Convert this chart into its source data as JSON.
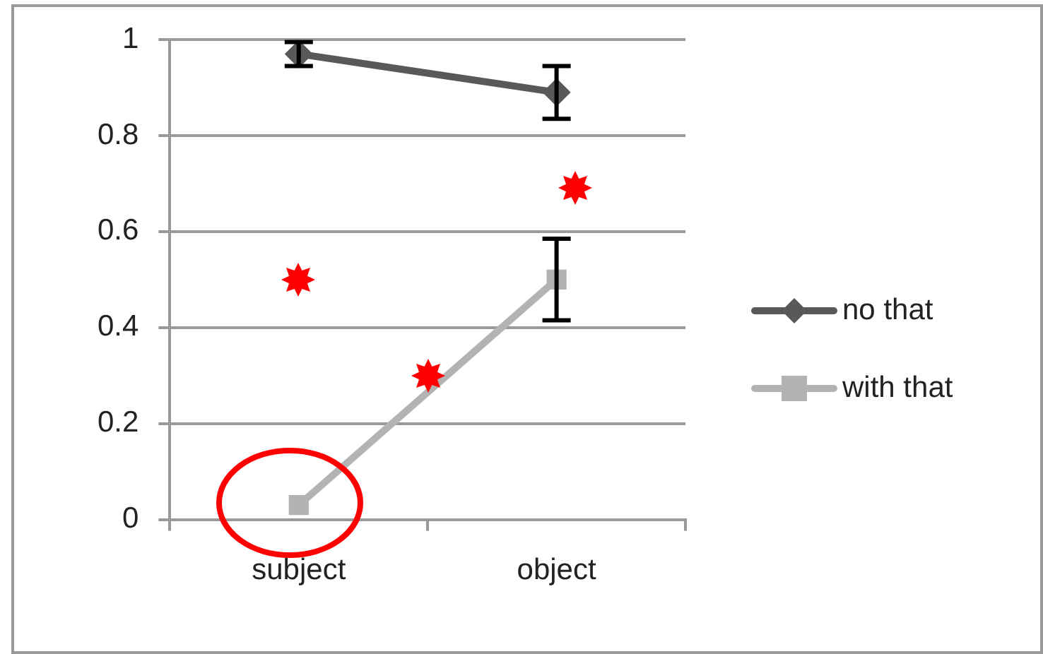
{
  "chart_data": {
    "type": "line",
    "categories": [
      "subject",
      "object"
    ],
    "series": [
      {
        "name": "no that",
        "color": "#595959",
        "values": [
          0.97,
          0.89
        ],
        "errors": [
          0.025,
          0.055
        ],
        "marker": "diamond"
      },
      {
        "name": "with that",
        "color": "#b3b3b3",
        "values": [
          0.03,
          0.5
        ],
        "errors": [
          null,
          0.085
        ],
        "marker": "square"
      }
    ],
    "ylim": [
      0,
      1
    ],
    "yticks": [
      0,
      0.2,
      0.4,
      0.6,
      0.8,
      1
    ],
    "grid": "y",
    "legend": "right",
    "line_style": "solid"
  }
}
